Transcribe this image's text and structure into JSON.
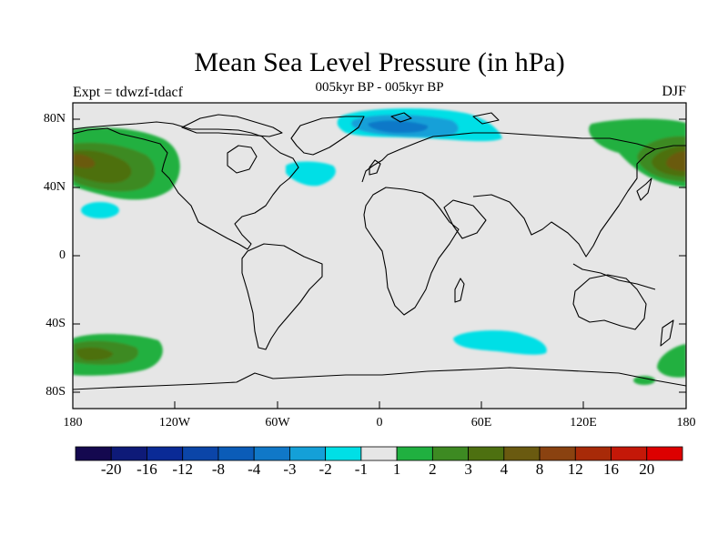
{
  "title": "Mean Sea Level Pressure (in hPa)",
  "subtitle": "005kyr BP - 005kyr BP",
  "left_label": "Expt = tdwzf-tdacf",
  "right_label": "DJF",
  "lat_labels": [
    "80N",
    "40N",
    "0",
    "40S",
    "80S"
  ],
  "lon_labels": [
    "180",
    "120W",
    "60W",
    "0",
    "60E",
    "120E",
    "180"
  ],
  "colorbar": {
    "labels": [
      "-20",
      "-16",
      "-12",
      "-8",
      "-4",
      "-3",
      "-2",
      "-1",
      "1",
      "2",
      "3",
      "4",
      "8",
      "12",
      "16",
      "20"
    ],
    "colors": [
      "#14084f",
      "#0e1a78",
      "#0a2a96",
      "#0b45a8",
      "#0b5cb8",
      "#1078c8",
      "#14a0d8",
      "#00dfe6",
      "#e6e6e6",
      "#20b040",
      "#3d8a22",
      "#4d7010",
      "#6a5a10",
      "#8a4210",
      "#a82a08",
      "#c41808",
      "#dd0000"
    ]
  },
  "colors": {
    "ocean_background": "#e6e6e6",
    "coastline": "#000000"
  },
  "chart_data": {
    "type": "heatmap",
    "title": "Mean Sea Level Pressure (in hPa)",
    "subtitle": "005kyr BP - 005kyr BP",
    "experiment": "Expt = tdwzf-tdacf",
    "season": "DJF",
    "units": "hPa",
    "xlim": [
      -180,
      180
    ],
    "ylim": [
      -90,
      90
    ],
    "contour_levels": [
      -20,
      -16,
      -12,
      -8,
      -4,
      -3,
      -2,
      -1,
      1,
      2,
      3,
      4,
      8,
      12,
      16,
      20
    ],
    "anomaly_regions": [
      {
        "region": "North Pacific / Aleutian",
        "lon": [
          -180,
          -130
        ],
        "lat": [
          40,
          75
        ],
        "level_range": [
          1,
          4
        ]
      },
      {
        "region": "Subtropical North Pacific",
        "lon": [
          -165,
          -152
        ],
        "lat": [
          24,
          30
        ],
        "level_range": [
          -2,
          -1
        ]
      },
      {
        "region": "North Atlantic",
        "lon": [
          -53,
          -35
        ],
        "lat": [
          40,
          55
        ],
        "level_range": [
          -2,
          -1
        ]
      },
      {
        "region": "Arctic / Barents Sea",
        "lon": [
          -20,
          70
        ],
        "lat": [
          68,
          85
        ],
        "level_range": [
          -3,
          -1
        ]
      },
      {
        "region": "Southern Ocean Indian sector",
        "lon": [
          40,
          100
        ],
        "lat": [
          -60,
          -45
        ],
        "level_range": [
          -2,
          -1
        ]
      },
      {
        "region": "South Pacific",
        "lon": [
          -180,
          -130
        ],
        "lat": [
          -70,
          -50
        ],
        "level_range": [
          1,
          3
        ]
      },
      {
        "region": "Far western North Pacific",
        "lon": [
          130,
          180
        ],
        "lat": [
          40,
          80
        ],
        "level_range": [
          1,
          4
        ]
      }
    ]
  }
}
